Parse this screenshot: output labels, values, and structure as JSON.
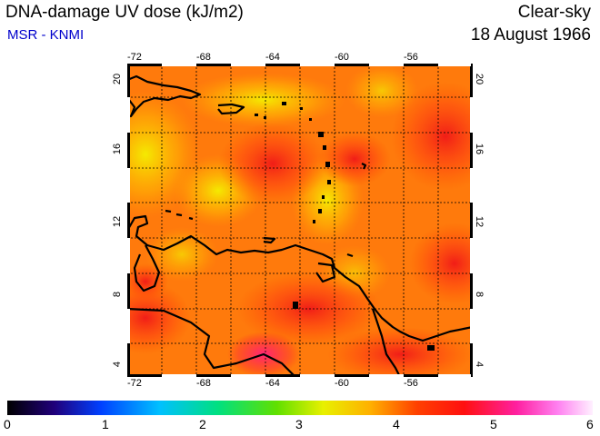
{
  "header": {
    "title": "DNA-damage UV dose (kJ/m2)",
    "source": "MSR - KNMI",
    "condition": "Clear-sky",
    "date": "18 August 1966"
  },
  "axes": {
    "lon_ticks": [
      "-72",
      "-68",
      "-64",
      "-60",
      "-56"
    ],
    "lat_ticks": [
      "4",
      "8",
      "12",
      "16",
      "20"
    ]
  },
  "colorbar": {
    "labels": [
      "0",
      "1",
      "2",
      "3",
      "4",
      "5",
      "6"
    ]
  }
}
